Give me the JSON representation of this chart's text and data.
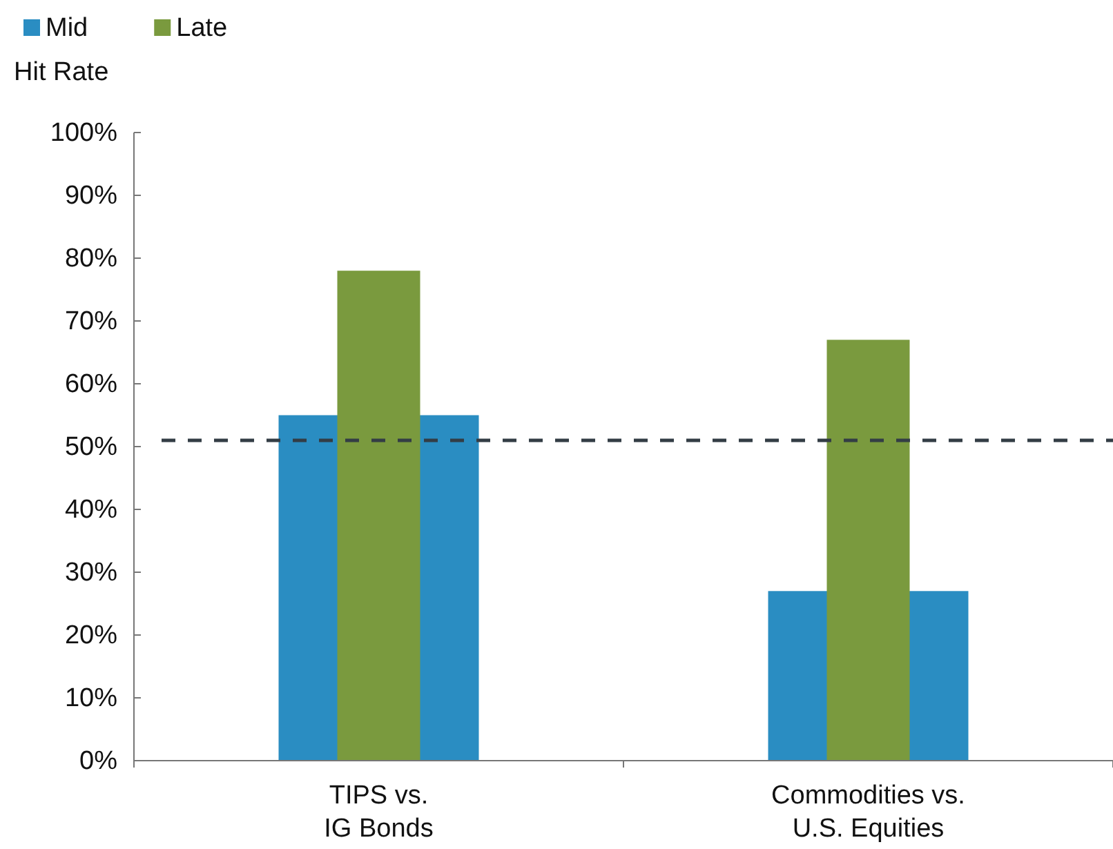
{
  "chart_data": {
    "type": "bar",
    "ylabel": "Hit Rate",
    "categories": [
      "TIPS vs.\nIG Bonds",
      "Commodities vs.\nU.S. Equities"
    ],
    "series": [
      {
        "name": "Mid",
        "color": "#2a8dc2",
        "values": [
          55,
          27
        ]
      },
      {
        "name": "Late",
        "color": "#7a9a3e",
        "values": [
          78,
          67
        ]
      }
    ],
    "ylim": [
      0,
      100
    ],
    "yticks": [
      {
        "value": 0,
        "label": "0%"
      },
      {
        "value": 10,
        "label": "10%"
      },
      {
        "value": 20,
        "label": "20%"
      },
      {
        "value": 30,
        "label": "30%"
      },
      {
        "value": 40,
        "label": "40%"
      },
      {
        "value": 50,
        "label": "50%"
      },
      {
        "value": 60,
        "label": "60%"
      },
      {
        "value": 70,
        "label": "70%"
      },
      {
        "value": 80,
        "label": "80%"
      },
      {
        "value": 90,
        "label": "90%"
      },
      {
        "value": 100,
        "label": "100%"
      }
    ],
    "ref_lines": [
      {
        "axis": "y",
        "value": 51,
        "color": "#333d45",
        "line_style": "dashed"
      }
    ],
    "legend": "top left",
    "grid": false
  }
}
